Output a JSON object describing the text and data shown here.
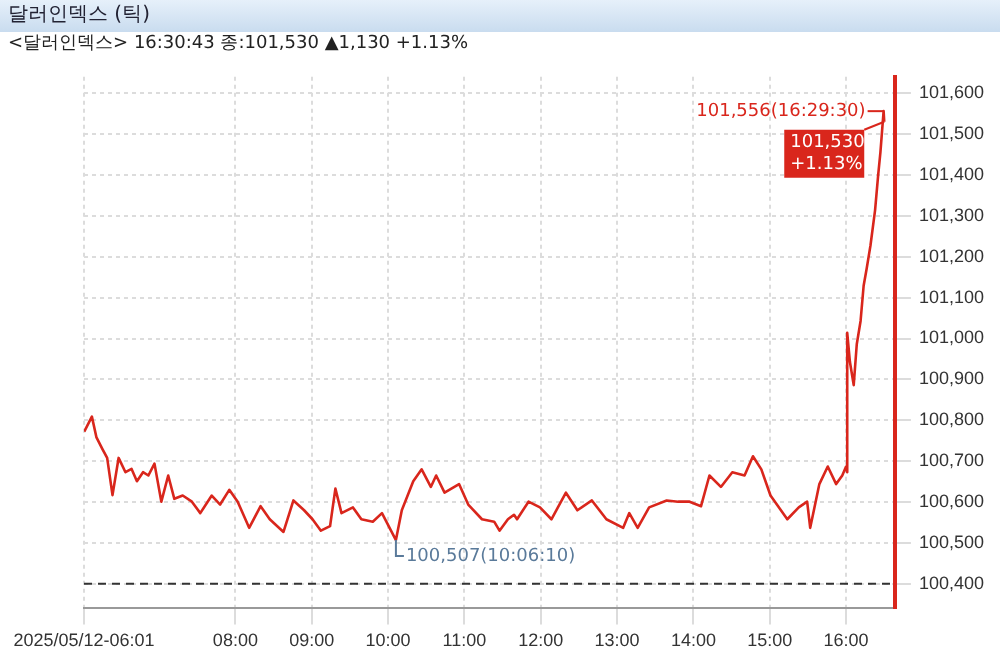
{
  "chart_data": {
    "type": "line",
    "title": "달러인덱스 (틱)",
    "subtitle": "<달러인덱스> 16:30:43 종:101,530 ▲1,130 +1.13%",
    "xlim": [
      6.0167,
      16.64
    ],
    "xticks": [
      {
        "value": 6.0167,
        "label": "2025/05/12-06:01"
      },
      {
        "value": 8,
        "label": "08:00"
      },
      {
        "value": 9,
        "label": "09:00"
      },
      {
        "value": 10,
        "label": "10:00"
      },
      {
        "value": 11,
        "label": "11:00"
      },
      {
        "value": 12,
        "label": "12:00"
      },
      {
        "value": 13,
        "label": "13:00"
      },
      {
        "value": 14,
        "label": "14:00"
      },
      {
        "value": 15,
        "label": "15:00"
      },
      {
        "value": 16,
        "label": "16:00"
      }
    ],
    "ylim": [
      100340,
      101640
    ],
    "yticks": [
      {
        "value": 100400,
        "label": "100,400"
      },
      {
        "value": 100500,
        "label": "100,500"
      },
      {
        "value": 100600,
        "label": "100,600"
      },
      {
        "value": 100700,
        "label": "100,700"
      },
      {
        "value": 100800,
        "label": "100,800"
      },
      {
        "value": 100900,
        "label": "100,900"
      },
      {
        "value": 101000,
        "label": "101,000"
      },
      {
        "value": 101100,
        "label": "101,100"
      },
      {
        "value": 101200,
        "label": "101,200"
      },
      {
        "value": 101300,
        "label": "101,300"
      },
      {
        "value": 101400,
        "label": "101,400"
      },
      {
        "value": 101500,
        "label": "101,500"
      },
      {
        "value": 101600,
        "label": "101,600"
      }
    ],
    "grid": true,
    "ref_lines": [
      {
        "axis": "y",
        "value": 100400,
        "color": "#333333",
        "line_style": "dashed"
      }
    ],
    "annotations": [
      {
        "text": "101,556(16:29:30)",
        "x": 16.4917,
        "y": 101556
      },
      {
        "text": "100,507(10:06:10)",
        "x": 10.1028,
        "y": 100507
      },
      {
        "text": "101,530 +1.13%",
        "x": 16.5,
        "y": 101530
      }
    ],
    "series": [
      {
        "color": "#d9261c",
        "x": [
          6.02,
          6.12,
          6.18,
          6.26,
          6.32,
          6.39,
          6.47,
          6.56,
          6.64,
          6.71,
          6.79,
          6.86,
          6.94,
          7.03,
          7.12,
          7.2,
          7.31,
          7.43,
          7.54,
          7.69,
          7.8,
          7.92,
          8.03,
          8.18,
          8.33,
          8.45,
          8.63,
          8.76,
          8.9,
          9.01,
          9.12,
          9.24,
          9.31,
          9.39,
          9.54,
          9.65,
          9.8,
          9.92,
          10.1028,
          10.18,
          10.33,
          10.44,
          10.56,
          10.63,
          10.74,
          10.93,
          11.05,
          11.23,
          11.39,
          11.46,
          11.57,
          11.65,
          11.69,
          11.84,
          11.99,
          12.14,
          12.33,
          12.48,
          12.67,
          12.86,
          13.08,
          13.16,
          13.27,
          13.42,
          13.65,
          13.8,
          13.95,
          14.1,
          14.21,
          14.36,
          14.51,
          14.67,
          14.78,
          14.89,
          15.01,
          15.23,
          15.38,
          15.49,
          15.53,
          15.65,
          15.76,
          15.87,
          15.95,
          16,
          16.01,
          16.02,
          16.05,
          16.1,
          16.14,
          16.19,
          16.23,
          16.27,
          16.32,
          16.38,
          16.42,
          16.45,
          16.4917,
          16.5
        ],
        "values": [
          100772,
          100809,
          100758,
          100729,
          100708,
          100617,
          100708,
          100673,
          100681,
          100651,
          100673,
          100665,
          100694,
          100601,
          100665,
          100608,
          100616,
          100601,
          100573,
          100616,
          100594,
          100630,
          100601,
          100537,
          100590,
          100558,
          100527,
          100604,
          100580,
          100558,
          100530,
          100541,
          100633,
          100573,
          100587,
          100558,
          100552,
          100573,
          100507,
          100580,
          100651,
          100680,
          100637,
          100665,
          100623,
          100644,
          100594,
          100558,
          100552,
          100530,
          100558,
          100569,
          100558,
          100601,
          100587,
          100558,
          100623,
          100580,
          100604,
          100558,
          100537,
          100573,
          100537,
          100587,
          100604,
          100601,
          100601,
          100590,
          100665,
          100637,
          100673,
          100665,
          100712,
          100680,
          100616,
          100558,
          100587,
          100601,
          100537,
          100644,
          100687,
          100644,
          100665,
          100687,
          100673,
          101014,
          100943,
          100886,
          100986,
          101043,
          101129,
          101171,
          101228,
          101314,
          101399,
          101456,
          101556,
          101530
        ]
      }
    ]
  }
}
